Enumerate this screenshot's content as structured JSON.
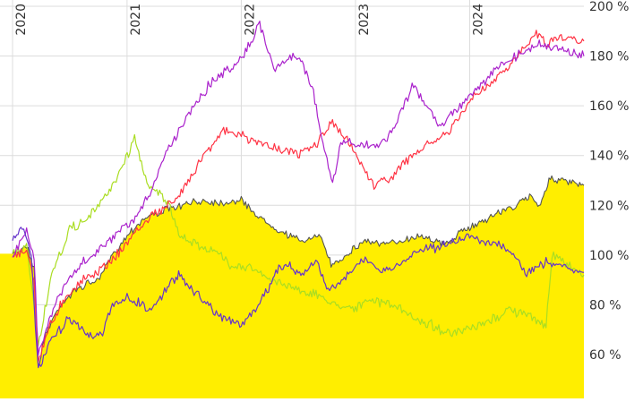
{
  "chart_data": {
    "type": "line",
    "y_axis_position": "right",
    "x_axis_position": "top",
    "x_tick_label_orientation": "vertical",
    "grid": "vertical lines at year boundaries, horizontal lines at y ticks",
    "xlim": [
      "2020-01-01",
      "2024-12-31"
    ],
    "x_ticks": [
      {
        "label": "2020",
        "date": "2020-01-01"
      },
      {
        "label": "2021",
        "date": "2021-01-01"
      },
      {
        "label": "2022",
        "date": "2022-01-01"
      },
      {
        "label": "2023",
        "date": "2023-01-01"
      },
      {
        "label": "2024",
        "date": "2024-01-01"
      }
    ],
    "ylim": [
      46,
      201
    ],
    "y_ticks": [
      {
        "label": "60 %",
        "value": 60
      },
      {
        "label": "80 %",
        "value": 80
      },
      {
        "label": "100 %",
        "value": 100
      },
      {
        "label": "120 %",
        "value": 120
      },
      {
        "label": "140 %",
        "value": 140
      },
      {
        "label": "160 %",
        "value": 160
      },
      {
        "label": "180 %",
        "value": 180
      },
      {
        "label": "200 %",
        "value": 200
      }
    ],
    "series": [
      {
        "style": "area",
        "color": "#ffee00",
        "line_color": "#555555",
        "points": [
          [
            "2020-01-01",
            100
          ],
          [
            "2020-02-15",
            104
          ],
          [
            "2020-03-10",
            95
          ],
          [
            "2020-03-23",
            55
          ],
          [
            "2020-04-15",
            68
          ],
          [
            "2020-06-01",
            80
          ],
          [
            "2020-08-01",
            87
          ],
          [
            "2020-10-01",
            90
          ],
          [
            "2020-11-15",
            100
          ],
          [
            "2021-01-15",
            110
          ],
          [
            "2021-03-01",
            115
          ],
          [
            "2021-05-01",
            118
          ],
          [
            "2021-07-01",
            120
          ],
          [
            "2021-09-01",
            122
          ],
          [
            "2021-11-01",
            121
          ],
          [
            "2022-01-01",
            122
          ],
          [
            "2022-03-01",
            115
          ],
          [
            "2022-05-01",
            110
          ],
          [
            "2022-07-01",
            106
          ],
          [
            "2022-09-15",
            107
          ],
          [
            "2022-10-15",
            96
          ],
          [
            "2022-12-01",
            100
          ],
          [
            "2023-02-01",
            106
          ],
          [
            "2023-04-01",
            104
          ],
          [
            "2023-06-01",
            106
          ],
          [
            "2023-08-01",
            108
          ],
          [
            "2023-10-15",
            104
          ],
          [
            "2023-12-01",
            109
          ],
          [
            "2024-02-01",
            113
          ],
          [
            "2024-04-01",
            117
          ],
          [
            "2024-06-01",
            120
          ],
          [
            "2024-07-15",
            124
          ],
          [
            "2024-08-10",
            120
          ],
          [
            "2024-09-15",
            131
          ],
          [
            "2024-10-15",
            130
          ],
          [
            "2024-12-31",
            128
          ]
        ]
      },
      {
        "style": "line",
        "color": "#aadd22",
        "points": [
          [
            "2020-01-01",
            100
          ],
          [
            "2020-02-15",
            103
          ],
          [
            "2020-03-15",
            75
          ],
          [
            "2020-03-23",
            63
          ],
          [
            "2020-05-01",
            90
          ],
          [
            "2020-07-01",
            110
          ],
          [
            "2020-09-01",
            115
          ],
          [
            "2020-11-01",
            125
          ],
          [
            "2020-12-15",
            135
          ],
          [
            "2021-01-10",
            142
          ],
          [
            "2021-01-25",
            148
          ],
          [
            "2021-03-01",
            130
          ],
          [
            "2021-04-15",
            125
          ],
          [
            "2021-05-15",
            120
          ],
          [
            "2021-06-15",
            108
          ],
          [
            "2021-08-01",
            105
          ],
          [
            "2021-10-01",
            102
          ],
          [
            "2021-12-01",
            96
          ],
          [
            "2022-02-01",
            95
          ],
          [
            "2022-04-01",
            90
          ],
          [
            "2022-06-01",
            88
          ],
          [
            "2022-08-01",
            85
          ],
          [
            "2022-09-15",
            83
          ],
          [
            "2022-11-01",
            80
          ],
          [
            "2023-01-01",
            79
          ],
          [
            "2023-03-01",
            82
          ],
          [
            "2023-05-01",
            80
          ],
          [
            "2023-07-01",
            75
          ],
          [
            "2023-09-01",
            72
          ],
          [
            "2023-11-01",
            68
          ],
          [
            "2024-01-01",
            70
          ],
          [
            "2024-03-01",
            73
          ],
          [
            "2024-05-01",
            78
          ],
          [
            "2024-07-01",
            76
          ],
          [
            "2024-09-01",
            72
          ],
          [
            "2024-09-20",
            100
          ],
          [
            "2024-10-15",
            98
          ],
          [
            "2024-12-31",
            92
          ]
        ]
      },
      {
        "style": "line",
        "color": "#ff3344",
        "points": [
          [
            "2020-01-01",
            100
          ],
          [
            "2020-02-15",
            102
          ],
          [
            "2020-03-10",
            90
          ],
          [
            "2020-03-23",
            58
          ],
          [
            "2020-05-01",
            72
          ],
          [
            "2020-06-15",
            83
          ],
          [
            "2020-08-15",
            90
          ],
          [
            "2020-10-15",
            95
          ],
          [
            "2020-12-15",
            102
          ],
          [
            "2021-02-01",
            110
          ],
          [
            "2021-04-01",
            117
          ],
          [
            "2021-06-01",
            121
          ],
          [
            "2021-07-15",
            130
          ],
          [
            "2021-09-01",
            140
          ],
          [
            "2021-11-01",
            150
          ],
          [
            "2022-01-01",
            148
          ],
          [
            "2022-03-01",
            145
          ],
          [
            "2022-05-01",
            143
          ],
          [
            "2022-07-01",
            140
          ],
          [
            "2022-09-01",
            145
          ],
          [
            "2022-10-15",
            153
          ],
          [
            "2022-12-01",
            147
          ],
          [
            "2023-01-15",
            138
          ],
          [
            "2023-03-01",
            128
          ],
          [
            "2023-05-01",
            132
          ],
          [
            "2023-07-01",
            140
          ],
          [
            "2023-09-01",
            145
          ],
          [
            "2023-11-01",
            150
          ],
          [
            "2024-01-01",
            162
          ],
          [
            "2024-03-01",
            168
          ],
          [
            "2024-05-01",
            175
          ],
          [
            "2024-07-01",
            185
          ],
          [
            "2024-08-01",
            190
          ],
          [
            "2024-09-01",
            185
          ],
          [
            "2024-10-15",
            188
          ],
          [
            "2024-12-31",
            186
          ]
        ]
      },
      {
        "style": "line",
        "color": "#aa22cc",
        "points": [
          [
            "2020-01-01",
            100
          ],
          [
            "2020-02-15",
            110
          ],
          [
            "2020-03-10",
            100
          ],
          [
            "2020-03-23",
            60
          ],
          [
            "2020-05-01",
            75
          ],
          [
            "2020-06-15",
            88
          ],
          [
            "2020-08-15",
            97
          ],
          [
            "2020-10-15",
            103
          ],
          [
            "2020-12-15",
            110
          ],
          [
            "2021-02-01",
            115
          ],
          [
            "2021-03-15",
            125
          ],
          [
            "2021-05-01",
            140
          ],
          [
            "2021-06-15",
            150
          ],
          [
            "2021-08-01",
            160
          ],
          [
            "2021-10-01",
            170
          ],
          [
            "2021-12-01",
            175
          ],
          [
            "2022-02-01",
            185
          ],
          [
            "2022-03-01",
            193
          ],
          [
            "2022-04-15",
            175
          ],
          [
            "2022-06-15",
            180
          ],
          [
            "2022-07-15",
            178
          ],
          [
            "2022-08-20",
            165
          ],
          [
            "2022-09-10",
            150
          ],
          [
            "2022-10-20",
            128
          ],
          [
            "2022-11-15",
            145
          ],
          [
            "2023-01-01",
            145
          ],
          [
            "2023-03-01",
            143
          ],
          [
            "2023-05-01",
            150
          ],
          [
            "2023-07-01",
            168
          ],
          [
            "2023-08-15",
            160
          ],
          [
            "2023-10-01",
            152
          ],
          [
            "2023-12-01",
            160
          ],
          [
            "2024-02-01",
            168
          ],
          [
            "2024-04-01",
            175
          ],
          [
            "2024-06-01",
            180
          ],
          [
            "2024-08-01",
            185
          ],
          [
            "2024-10-01",
            183
          ],
          [
            "2024-12-31",
            180
          ]
        ]
      },
      {
        "style": "line",
        "color": "#6633cc",
        "points": [
          [
            "2020-01-01",
            105
          ],
          [
            "2020-02-01",
            112
          ],
          [
            "2020-03-01",
            100
          ],
          [
            "2020-03-23",
            53
          ],
          [
            "2020-05-01",
            65
          ],
          [
            "2020-07-01",
            75
          ],
          [
            "2020-09-01",
            68
          ],
          [
            "2020-10-15",
            68
          ],
          [
            "2020-11-15",
            80
          ],
          [
            "2021-01-01",
            83
          ],
          [
            "2021-02-15",
            80
          ],
          [
            "2021-03-15",
            78
          ],
          [
            "2021-05-01",
            85
          ],
          [
            "2021-06-15",
            93
          ],
          [
            "2021-07-15",
            88
          ],
          [
            "2021-09-01",
            82
          ],
          [
            "2021-11-01",
            75
          ],
          [
            "2022-01-01",
            72
          ],
          [
            "2022-03-01",
            80
          ],
          [
            "2022-05-01",
            95
          ],
          [
            "2022-06-01",
            96
          ],
          [
            "2022-07-15",
            92
          ],
          [
            "2022-09-01",
            98
          ],
          [
            "2022-10-01",
            85
          ],
          [
            "2022-12-01",
            92
          ],
          [
            "2023-02-01",
            98
          ],
          [
            "2023-04-01",
            93
          ],
          [
            "2023-06-01",
            97
          ],
          [
            "2023-08-01",
            103
          ],
          [
            "2023-10-01",
            103
          ],
          [
            "2024-01-01",
            108
          ],
          [
            "2024-03-01",
            105
          ],
          [
            "2024-05-01",
            102
          ],
          [
            "2024-07-01",
            93
          ],
          [
            "2024-09-01",
            97
          ],
          [
            "2024-11-01",
            96
          ],
          [
            "2024-12-31",
            93
          ]
        ]
      }
    ]
  }
}
